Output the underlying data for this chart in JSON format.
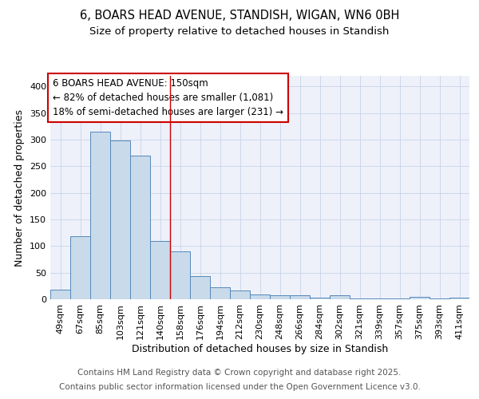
{
  "title_line1": "6, BOARS HEAD AVENUE, STANDISH, WIGAN, WN6 0BH",
  "title_line2": "Size of property relative to detached houses in Standish",
  "xlabel": "Distribution of detached houses by size in Standish",
  "ylabel": "Number of detached properties",
  "categories": [
    "49sqm",
    "67sqm",
    "85sqm",
    "103sqm",
    "121sqm",
    "140sqm",
    "158sqm",
    "176sqm",
    "194sqm",
    "212sqm",
    "230sqm",
    "248sqm",
    "266sqm",
    "284sqm",
    "302sqm",
    "321sqm",
    "339sqm",
    "357sqm",
    "375sqm",
    "393sqm",
    "411sqm"
  ],
  "values": [
    18,
    119,
    315,
    298,
    270,
    109,
    90,
    43,
    22,
    16,
    9,
    7,
    7,
    3,
    7,
    2,
    1,
    1,
    4,
    1,
    3
  ],
  "bar_color": "#c9daea",
  "bar_edge_color": "#5588bb",
  "vline_color": "#cc0000",
  "vline_pos": 5.5,
  "annotation_line1": "6 BOARS HEAD AVENUE: 150sqm",
  "annotation_line2": "← 82% of detached houses are smaller (1,081)",
  "annotation_line3": "18% of semi-detached houses are larger (231) →",
  "annotation_box_edge": "#cc0000",
  "ylim": [
    0,
    420
  ],
  "yticks": [
    0,
    50,
    100,
    150,
    200,
    250,
    300,
    350,
    400
  ],
  "footnote_line1": "Contains HM Land Registry data © Crown copyright and database right 2025.",
  "footnote_line2": "Contains public sector information licensed under the Open Government Licence v3.0.",
  "bg_color": "#eef1fa",
  "title_fontsize": 10.5,
  "subtitle_fontsize": 9.5,
  "axis_label_fontsize": 9,
  "tick_fontsize": 8,
  "annotation_fontsize": 8.5,
  "footnote_fontsize": 7.5
}
